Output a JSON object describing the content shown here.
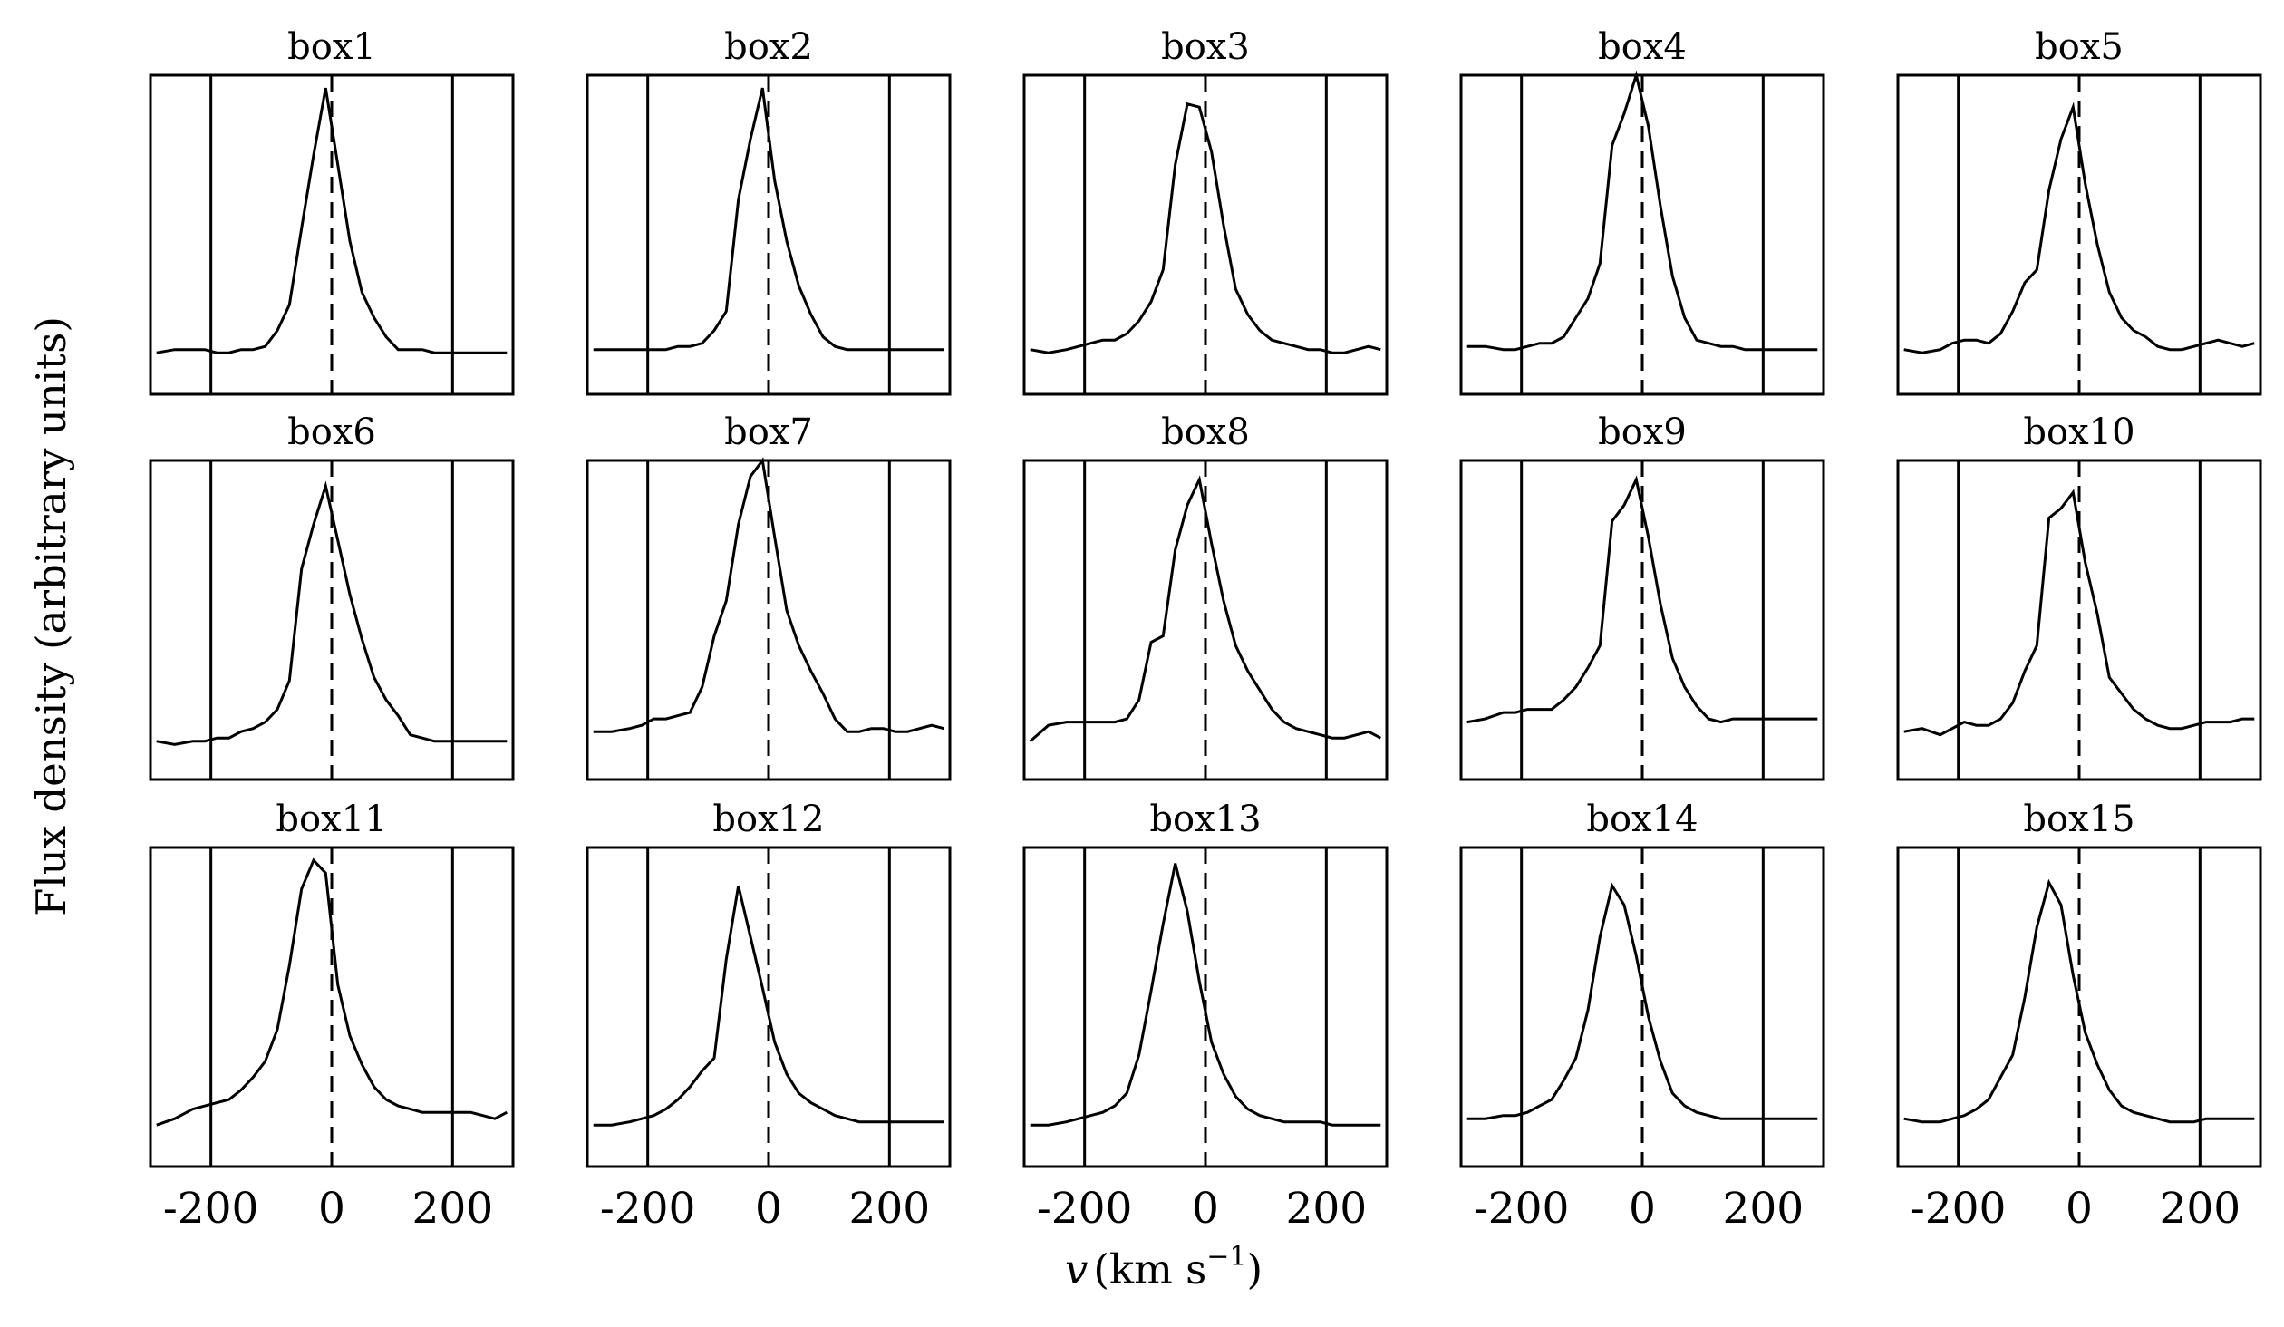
{
  "chart_data": {
    "type": "line",
    "xlabel": "v (km s⁻¹)",
    "xlabel_italic": "v",
    "xlabel_units_prefix": "(km s",
    "xlabel_units_exp": "−1",
    "xlabel_units_suffix": ")",
    "ylabel": "Flux density (arbitrary units)",
    "xlim": [
      -300,
      300
    ],
    "ylim": [
      0,
      1
    ],
    "xticks": [
      -200,
      0,
      200
    ],
    "xtick_labels": [
      "-200",
      "0",
      "200"
    ],
    "solid_vlines": [
      -200,
      200
    ],
    "dashed_vline": 0,
    "x": [
      -290,
      -260,
      -230,
      -210,
      -190,
      -170,
      -150,
      -130,
      -110,
      -90,
      -70,
      -50,
      -30,
      -10,
      10,
      30,
      50,
      70,
      90,
      110,
      130,
      150,
      170,
      190,
      210,
      230,
      250,
      270,
      290
    ],
    "panels": [
      {
        "title": "box1",
        "values": [
          0.13,
          0.14,
          0.14,
          0.14,
          0.13,
          0.13,
          0.14,
          0.14,
          0.15,
          0.2,
          0.28,
          0.52,
          0.75,
          0.96,
          0.72,
          0.48,
          0.32,
          0.24,
          0.18,
          0.14,
          0.14,
          0.14,
          0.13,
          0.13,
          0.13,
          0.13,
          0.13,
          0.13,
          0.13
        ]
      },
      {
        "title": "box2",
        "values": [
          0.14,
          0.14,
          0.14,
          0.14,
          0.14,
          0.14,
          0.15,
          0.15,
          0.16,
          0.2,
          0.26,
          0.61,
          0.8,
          0.96,
          0.67,
          0.48,
          0.34,
          0.25,
          0.18,
          0.15,
          0.14,
          0.14,
          0.14,
          0.14,
          0.14,
          0.14,
          0.14,
          0.14,
          0.14
        ]
      },
      {
        "title": "box3",
        "values": [
          0.14,
          0.13,
          0.14,
          0.15,
          0.16,
          0.17,
          0.17,
          0.19,
          0.23,
          0.29,
          0.39,
          0.72,
          0.91,
          0.9,
          0.76,
          0.53,
          0.33,
          0.25,
          0.2,
          0.17,
          0.16,
          0.15,
          0.14,
          0.14,
          0.13,
          0.13,
          0.14,
          0.15,
          0.14
        ]
      },
      {
        "title": "box4",
        "values": [
          0.15,
          0.15,
          0.14,
          0.14,
          0.15,
          0.16,
          0.16,
          0.18,
          0.24,
          0.3,
          0.41,
          0.78,
          0.88,
          1.0,
          0.84,
          0.59,
          0.37,
          0.24,
          0.17,
          0.16,
          0.15,
          0.15,
          0.14,
          0.14,
          0.14,
          0.14,
          0.14,
          0.14,
          0.14
        ]
      },
      {
        "title": "box5",
        "values": [
          0.14,
          0.13,
          0.14,
          0.16,
          0.17,
          0.17,
          0.16,
          0.19,
          0.26,
          0.35,
          0.39,
          0.64,
          0.8,
          0.9,
          0.66,
          0.47,
          0.32,
          0.24,
          0.2,
          0.18,
          0.15,
          0.14,
          0.14,
          0.15,
          0.16,
          0.17,
          0.16,
          0.15,
          0.16
        ]
      },
      {
        "title": "box6",
        "values": [
          0.12,
          0.11,
          0.12,
          0.12,
          0.13,
          0.13,
          0.15,
          0.16,
          0.18,
          0.22,
          0.31,
          0.66,
          0.8,
          0.92,
          0.75,
          0.58,
          0.44,
          0.32,
          0.25,
          0.2,
          0.14,
          0.13,
          0.12,
          0.12,
          0.12,
          0.12,
          0.12,
          0.12,
          0.12
        ]
      },
      {
        "title": "box7",
        "values": [
          0.15,
          0.15,
          0.16,
          0.17,
          0.19,
          0.19,
          0.2,
          0.21,
          0.29,
          0.45,
          0.56,
          0.8,
          0.95,
          1.0,
          0.76,
          0.53,
          0.42,
          0.34,
          0.27,
          0.19,
          0.15,
          0.15,
          0.16,
          0.16,
          0.15,
          0.15,
          0.16,
          0.17,
          0.16
        ]
      },
      {
        "title": "box8",
        "values": [
          0.12,
          0.17,
          0.18,
          0.18,
          0.18,
          0.18,
          0.18,
          0.19,
          0.25,
          0.43,
          0.45,
          0.72,
          0.86,
          0.94,
          0.74,
          0.56,
          0.42,
          0.34,
          0.28,
          0.22,
          0.18,
          0.16,
          0.15,
          0.14,
          0.13,
          0.13,
          0.14,
          0.15,
          0.13
        ]
      },
      {
        "title": "box9",
        "values": [
          0.18,
          0.19,
          0.21,
          0.21,
          0.22,
          0.22,
          0.22,
          0.25,
          0.29,
          0.35,
          0.42,
          0.81,
          0.86,
          0.94,
          0.76,
          0.55,
          0.38,
          0.29,
          0.23,
          0.19,
          0.18,
          0.19,
          0.19,
          0.19,
          0.19,
          0.19,
          0.19,
          0.19,
          0.19
        ]
      },
      {
        "title": "box10",
        "values": [
          0.15,
          0.16,
          0.14,
          0.16,
          0.18,
          0.17,
          0.17,
          0.19,
          0.24,
          0.34,
          0.42,
          0.82,
          0.85,
          0.9,
          0.68,
          0.52,
          0.32,
          0.27,
          0.22,
          0.19,
          0.17,
          0.16,
          0.16,
          0.17,
          0.18,
          0.18,
          0.18,
          0.19,
          0.19
        ]
      },
      {
        "title": "box11",
        "values": [
          0.13,
          0.15,
          0.18,
          0.19,
          0.2,
          0.21,
          0.24,
          0.28,
          0.33,
          0.43,
          0.63,
          0.87,
          0.96,
          0.92,
          0.57,
          0.41,
          0.32,
          0.25,
          0.21,
          0.19,
          0.18,
          0.17,
          0.17,
          0.17,
          0.17,
          0.17,
          0.16,
          0.15,
          0.17
        ]
      },
      {
        "title": "box12",
        "values": [
          0.13,
          0.13,
          0.14,
          0.15,
          0.16,
          0.18,
          0.21,
          0.25,
          0.3,
          0.34,
          0.65,
          0.88,
          0.72,
          0.56,
          0.39,
          0.29,
          0.23,
          0.2,
          0.18,
          0.16,
          0.15,
          0.14,
          0.14,
          0.14,
          0.14,
          0.14,
          0.14,
          0.14,
          0.14
        ]
      },
      {
        "title": "box13",
        "values": [
          0.13,
          0.13,
          0.14,
          0.15,
          0.16,
          0.17,
          0.19,
          0.23,
          0.35,
          0.55,
          0.76,
          0.95,
          0.8,
          0.58,
          0.39,
          0.29,
          0.22,
          0.18,
          0.16,
          0.15,
          0.14,
          0.14,
          0.14,
          0.14,
          0.13,
          0.13,
          0.13,
          0.13,
          0.13
        ]
      },
      {
        "title": "box14",
        "values": [
          0.15,
          0.15,
          0.16,
          0.16,
          0.17,
          0.19,
          0.21,
          0.27,
          0.34,
          0.49,
          0.72,
          0.88,
          0.82,
          0.66,
          0.47,
          0.33,
          0.23,
          0.19,
          0.17,
          0.16,
          0.15,
          0.15,
          0.15,
          0.15,
          0.15,
          0.15,
          0.15,
          0.15,
          0.15
        ]
      },
      {
        "title": "box15",
        "values": [
          0.15,
          0.14,
          0.14,
          0.15,
          0.16,
          0.18,
          0.21,
          0.28,
          0.35,
          0.53,
          0.75,
          0.89,
          0.82,
          0.6,
          0.42,
          0.32,
          0.24,
          0.19,
          0.17,
          0.16,
          0.15,
          0.14,
          0.14,
          0.14,
          0.15,
          0.15,
          0.15,
          0.15,
          0.15
        ]
      }
    ]
  }
}
